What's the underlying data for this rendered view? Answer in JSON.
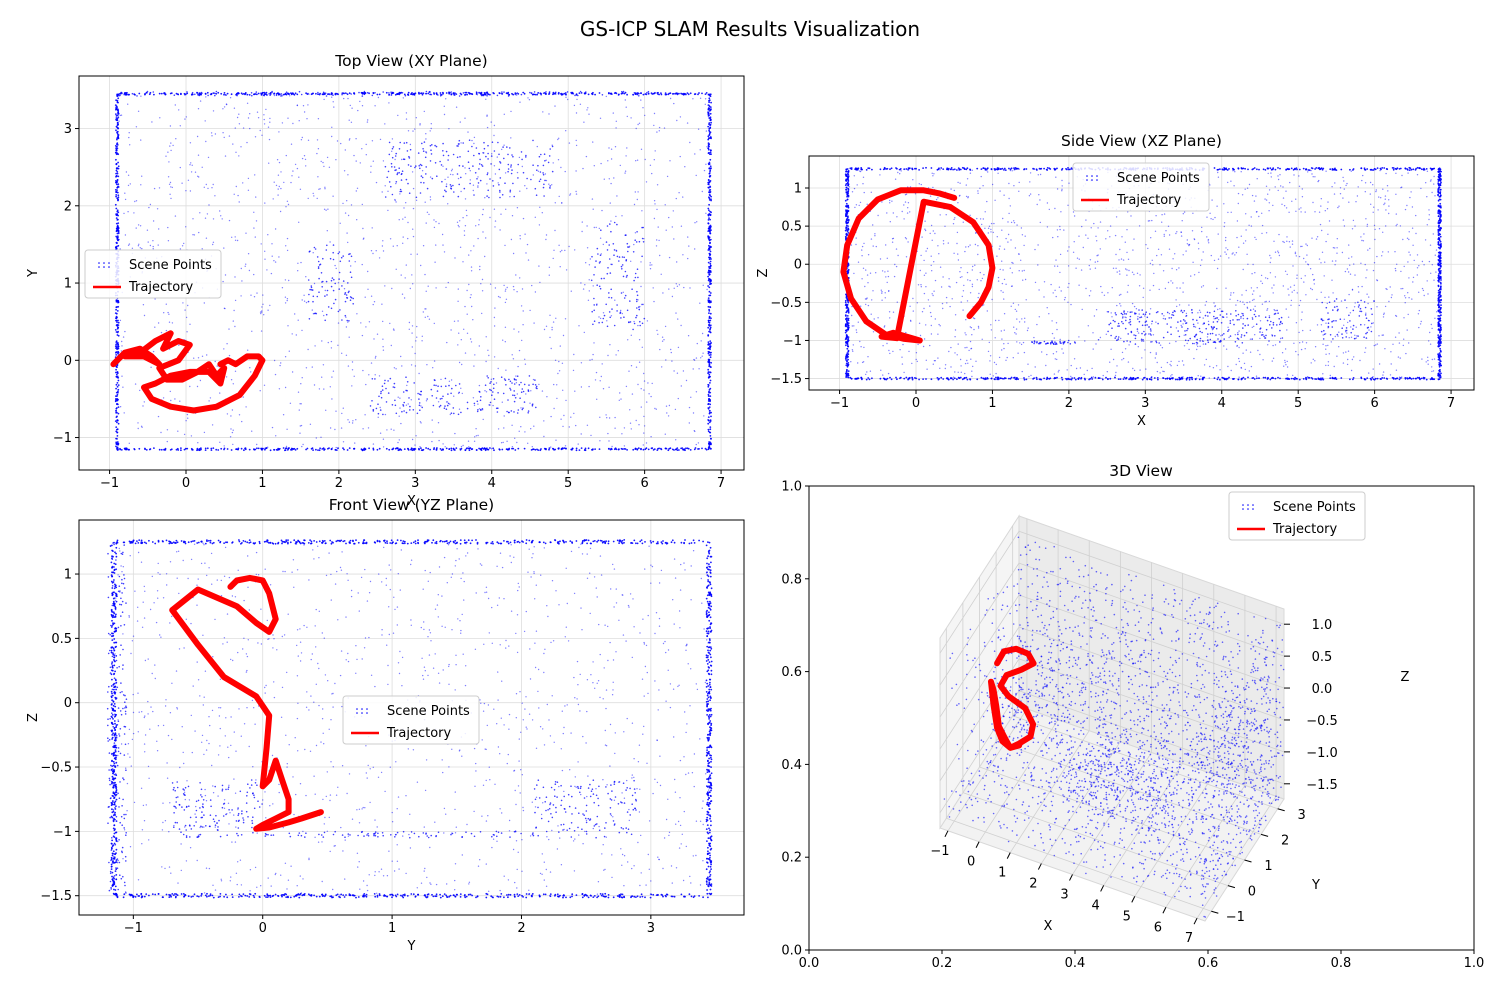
{
  "figure": {
    "title": "GS-ICP SLAM Results Visualization"
  },
  "colors": {
    "scene": "#0000ff",
    "trajectory": "#ff0000",
    "grid": "#dddddd",
    "pane": "#f2f2f2"
  },
  "chart_data": [
    {
      "id": "top",
      "type": "scatter",
      "title": "Top View (XY Plane)",
      "xlabel": "X",
      "ylabel": "Y",
      "xlim": [
        -1.4,
        7.3
      ],
      "ylim": [
        -1.42,
        3.68
      ],
      "xticks": [
        -1,
        0,
        1,
        2,
        3,
        4,
        5,
        6,
        7
      ],
      "yticks": [
        -1,
        0,
        1,
        2,
        3
      ],
      "grid": true,
      "legend": {
        "position": "center-left",
        "entries": [
          "Scene Points",
          "Trajectory"
        ]
      },
      "series": [
        {
          "name": "Scene Points",
          "kind": "points",
          "bounds": {
            "x": [
              -0.9,
              6.85
            ],
            "y": [
              -1.15,
              3.45
            ]
          }
        },
        {
          "name": "Trajectory",
          "kind": "line",
          "x": [
            -0.95,
            -0.8,
            -0.6,
            -0.45,
            -0.35,
            -0.55,
            -0.8,
            -0.6,
            -0.4,
            -0.2,
            -0.3,
            -0.1,
            0.05,
            -0.1,
            -0.35,
            -0.25,
            -0.05,
            0.15,
            0.3,
            0.4,
            0.5,
            0.45,
            0.3,
            0.05,
            -0.2,
            -0.4,
            -0.55,
            -0.45,
            -0.2,
            0.1,
            0.4,
            0.7,
            0.9,
            1.0,
            0.95,
            0.8,
            0.65,
            0.55,
            0.45
          ],
          "y": [
            -0.05,
            0.1,
            0.15,
            0.05,
            -0.05,
            0.05,
            0.05,
            0.1,
            0.25,
            0.35,
            0.15,
            0.25,
            0.2,
            0.0,
            -0.1,
            -0.25,
            -0.25,
            -0.15,
            -0.05,
            -0.2,
            -0.1,
            -0.3,
            -0.15,
            -0.15,
            -0.2,
            -0.3,
            -0.35,
            -0.5,
            -0.6,
            -0.65,
            -0.6,
            -0.45,
            -0.2,
            0.0,
            0.05,
            0.05,
            -0.05,
            0.0,
            -0.05
          ]
        }
      ]
    },
    {
      "id": "side",
      "type": "scatter",
      "title": "Side View (XZ Plane)",
      "xlabel": "X",
      "ylabel": "Z",
      "xlim": [
        -1.4,
        7.3
      ],
      "ylim": [
        -1.65,
        1.42
      ],
      "xticks": [
        -1,
        0,
        1,
        2,
        3,
        4,
        5,
        6,
        7
      ],
      "yticks": [
        -1.5,
        -1.0,
        -0.5,
        0.0,
        0.5,
        1.0
      ],
      "grid": true,
      "legend": {
        "position": "upper-center",
        "entries": [
          "Scene Points",
          "Trajectory"
        ]
      },
      "series": [
        {
          "name": "Scene Points",
          "kind": "points",
          "bounds": {
            "x": [
              -0.9,
              6.85
            ],
            "y": [
              -1.5,
              1.25
            ]
          }
        },
        {
          "name": "Trajectory",
          "kind": "line",
          "x": [
            0.5,
            0.3,
            0.1,
            -0.2,
            -0.5,
            -0.75,
            -0.9,
            -0.95,
            -0.85,
            -0.65,
            -0.4,
            -0.15,
            0.05,
            -0.05,
            -0.3,
            -0.45,
            -0.25,
            0.1,
            0.45,
            0.75,
            0.95,
            1.0,
            0.95,
            0.85,
            0.7
          ],
          "y": [
            0.87,
            0.93,
            0.97,
            0.97,
            0.85,
            0.6,
            0.25,
            -0.1,
            -0.45,
            -0.75,
            -0.92,
            -0.98,
            -1.0,
            -0.97,
            -0.9,
            -0.95,
            -0.97,
            0.82,
            0.75,
            0.55,
            0.25,
            -0.05,
            -0.3,
            -0.5,
            -0.68
          ]
        }
      ]
    },
    {
      "id": "front",
      "type": "scatter",
      "title": "Front View (YZ Plane)",
      "xlabel": "Y",
      "ylabel": "Z",
      "xlim": [
        -1.42,
        3.72
      ],
      "ylim": [
        -1.65,
        1.42
      ],
      "xticks": [
        -1,
        0,
        1,
        2,
        3
      ],
      "yticks": [
        -1.5,
        -1.0,
        -0.5,
        0.0,
        0.5,
        1.0
      ],
      "grid": true,
      "legend": {
        "position": "center",
        "entries": [
          "Scene Points",
          "Trajectory"
        ]
      },
      "series": [
        {
          "name": "Scene Points",
          "kind": "points",
          "bounds": {
            "x": [
              -1.15,
              3.45
            ],
            "y": [
              -1.5,
              1.25
            ]
          }
        },
        {
          "name": "Trajectory",
          "kind": "line",
          "x": [
            -0.25,
            -0.2,
            -0.1,
            0.0,
            0.05,
            0.1,
            0.05,
            -0.05,
            -0.2,
            -0.5,
            -0.7,
            -0.5,
            -0.3,
            -0.05,
            0.05,
            0.03,
            0.0,
            0.05,
            0.1,
            0.15,
            0.2,
            0.2,
            0.1,
            0.0,
            -0.05,
            0.05,
            0.2,
            0.3,
            0.45
          ],
          "y": [
            0.9,
            0.95,
            0.97,
            0.95,
            0.85,
            0.65,
            0.55,
            0.62,
            0.75,
            0.88,
            0.72,
            0.45,
            0.2,
            0.05,
            -0.1,
            -0.35,
            -0.65,
            -0.6,
            -0.45,
            -0.6,
            -0.75,
            -0.85,
            -0.9,
            -0.95,
            -0.98,
            -0.97,
            -0.93,
            -0.9,
            -0.85
          ]
        }
      ]
    },
    {
      "id": "view3d",
      "type": "scatter",
      "title": "3D View",
      "xlabel": "X",
      "ylabel": "Y",
      "zlabel": "Z",
      "outer_xlim": [
        0.0,
        1.0
      ],
      "outer_ylim": [
        0.0,
        1.0
      ],
      "outer_xticks": [
        "0.0",
        "0.2",
        "0.4",
        "0.6",
        "0.8",
        "1.0"
      ],
      "outer_yticks": [
        "0.0",
        "0.2",
        "0.4",
        "0.6",
        "0.8",
        "1.0"
      ],
      "xticks": [
        -1,
        0,
        1,
        2,
        3,
        4,
        5,
        6,
        7
      ],
      "yticks": [
        -1,
        0,
        1,
        2,
        3
      ],
      "zticks": [
        "1.0",
        "0.5",
        "0.0",
        "−0.5",
        "−1.0",
        "−1.5"
      ],
      "legend": {
        "position": "top-right",
        "entries": [
          "Scene Points",
          "Trajectory"
        ]
      },
      "series": [
        {
          "name": "Scene Points",
          "kind": "points"
        },
        {
          "name": "Trajectory",
          "kind": "line"
        }
      ]
    }
  ]
}
